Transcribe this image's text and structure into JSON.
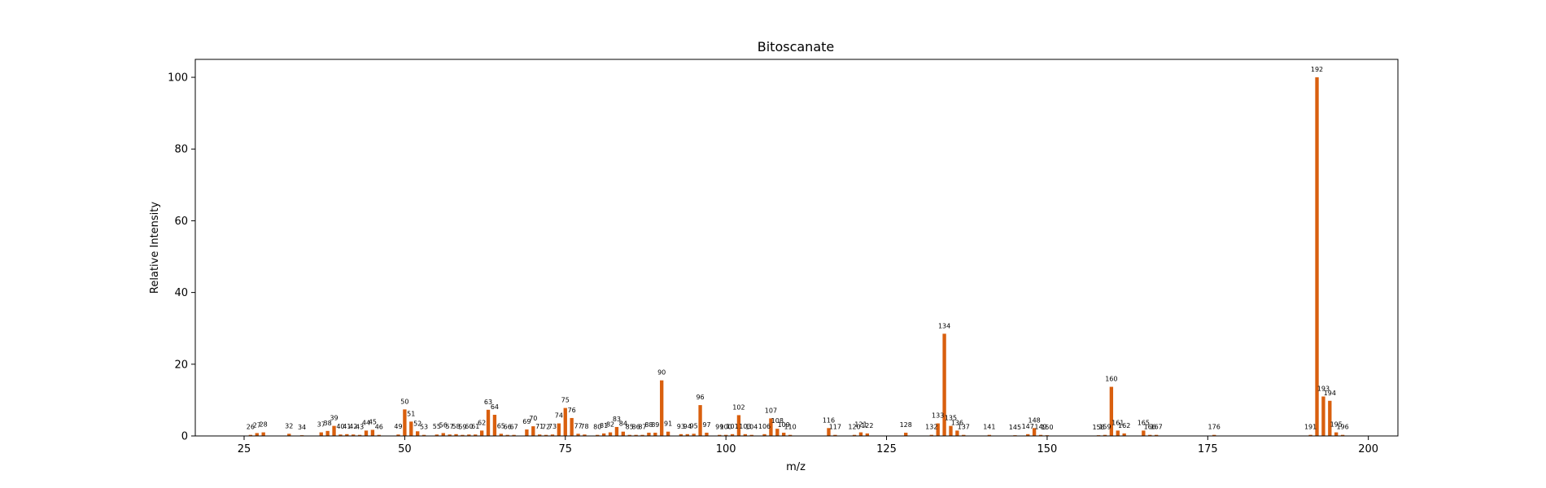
{
  "chart_data": {
    "type": "bar",
    "title": "Bitoscanate",
    "xlabel": "m/z",
    "ylabel": "Relative Intensity",
    "xlim": [
      17.4,
      204.6
    ],
    "ylim": [
      0,
      105
    ],
    "xticks": [
      25,
      50,
      75,
      100,
      125,
      150,
      175,
      200
    ],
    "yticks": [
      0,
      20,
      40,
      60,
      80,
      100
    ],
    "bar_color": "#d95f0e",
    "grid": false,
    "points": [
      {
        "mz": 26,
        "intensity": 0.3
      },
      {
        "mz": 27,
        "intensity": 0.8
      },
      {
        "mz": 28,
        "intensity": 1.0
      },
      {
        "mz": 32,
        "intensity": 0.6
      },
      {
        "mz": 34,
        "intensity": 0.2
      },
      {
        "mz": 37,
        "intensity": 1.0
      },
      {
        "mz": 38,
        "intensity": 1.4
      },
      {
        "mz": 39,
        "intensity": 2.8
      },
      {
        "mz": 40,
        "intensity": 0.4
      },
      {
        "mz": 41,
        "intensity": 0.5
      },
      {
        "mz": 42,
        "intensity": 0.4
      },
      {
        "mz": 43,
        "intensity": 0.3
      },
      {
        "mz": 44,
        "intensity": 1.5
      },
      {
        "mz": 45,
        "intensity": 1.7
      },
      {
        "mz": 46,
        "intensity": 0.3
      },
      {
        "mz": 49,
        "intensity": 0.4
      },
      {
        "mz": 50,
        "intensity": 7.4
      },
      {
        "mz": 51,
        "intensity": 4.0
      },
      {
        "mz": 52,
        "intensity": 1.3
      },
      {
        "mz": 53,
        "intensity": 0.3
      },
      {
        "mz": 55,
        "intensity": 0.4
      },
      {
        "mz": 56,
        "intensity": 0.8
      },
      {
        "mz": 57,
        "intensity": 0.4
      },
      {
        "mz": 58,
        "intensity": 0.5
      },
      {
        "mz": 59,
        "intensity": 0.3
      },
      {
        "mz": 60,
        "intensity": 0.4
      },
      {
        "mz": 61,
        "intensity": 0.4
      },
      {
        "mz": 62,
        "intensity": 1.5
      },
      {
        "mz": 63,
        "intensity": 7.3
      },
      {
        "mz": 64,
        "intensity": 5.9
      },
      {
        "mz": 65,
        "intensity": 0.6
      },
      {
        "mz": 66,
        "intensity": 0.3
      },
      {
        "mz": 67,
        "intensity": 0.3
      },
      {
        "mz": 69,
        "intensity": 1.8
      },
      {
        "mz": 70,
        "intensity": 2.7
      },
      {
        "mz": 71,
        "intensity": 0.4
      },
      {
        "mz": 72,
        "intensity": 0.3
      },
      {
        "mz": 73,
        "intensity": 0.4
      },
      {
        "mz": 74,
        "intensity": 3.5
      },
      {
        "mz": 75,
        "intensity": 7.8
      },
      {
        "mz": 76,
        "intensity": 5.0
      },
      {
        "mz": 77,
        "intensity": 0.6
      },
      {
        "mz": 78,
        "intensity": 0.4
      },
      {
        "mz": 80,
        "intensity": 0.3
      },
      {
        "mz": 81,
        "intensity": 0.7
      },
      {
        "mz": 82,
        "intensity": 1.0
      },
      {
        "mz": 83,
        "intensity": 2.5
      },
      {
        "mz": 84,
        "intensity": 1.2
      },
      {
        "mz": 85,
        "intensity": 0.3
      },
      {
        "mz": 86,
        "intensity": 0.3
      },
      {
        "mz": 87,
        "intensity": 0.3
      },
      {
        "mz": 88,
        "intensity": 0.9
      },
      {
        "mz": 89,
        "intensity": 0.9
      },
      {
        "mz": 90,
        "intensity": 15.5
      },
      {
        "mz": 91,
        "intensity": 1.2
      },
      {
        "mz": 93,
        "intensity": 0.5
      },
      {
        "mz": 94,
        "intensity": 0.5
      },
      {
        "mz": 95,
        "intensity": 0.6
      },
      {
        "mz": 96,
        "intensity": 8.6
      },
      {
        "mz": 97,
        "intensity": 0.9
      },
      {
        "mz": 99,
        "intensity": 0.3
      },
      {
        "mz": 100,
        "intensity": 0.3
      },
      {
        "mz": 101,
        "intensity": 0.5
      },
      {
        "mz": 102,
        "intensity": 5.8
      },
      {
        "mz": 103,
        "intensity": 0.5
      },
      {
        "mz": 104,
        "intensity": 0.3
      },
      {
        "mz": 106,
        "intensity": 0.5
      },
      {
        "mz": 107,
        "intensity": 4.9
      },
      {
        "mz": 108,
        "intensity": 2.0
      },
      {
        "mz": 109,
        "intensity": 0.9
      },
      {
        "mz": 110,
        "intensity": 0.3
      },
      {
        "mz": 116,
        "intensity": 2.2
      },
      {
        "mz": 117,
        "intensity": 0.3
      },
      {
        "mz": 120,
        "intensity": 0.3
      },
      {
        "mz": 121,
        "intensity": 1.0
      },
      {
        "mz": 122,
        "intensity": 0.7
      },
      {
        "mz": 128,
        "intensity": 0.9
      },
      {
        "mz": 132,
        "intensity": 0.3
      },
      {
        "mz": 133,
        "intensity": 3.5
      },
      {
        "mz": 134,
        "intensity": 28.5
      },
      {
        "mz": 135,
        "intensity": 2.8
      },
      {
        "mz": 136,
        "intensity": 1.5
      },
      {
        "mz": 137,
        "intensity": 0.3
      },
      {
        "mz": 141,
        "intensity": 0.3
      },
      {
        "mz": 145,
        "intensity": 0.2
      },
      {
        "mz": 147,
        "intensity": 0.5
      },
      {
        "mz": 148,
        "intensity": 2.2
      },
      {
        "mz": 149,
        "intensity": 0.3
      },
      {
        "mz": 150,
        "intensity": 0.2
      },
      {
        "mz": 158,
        "intensity": 0.2
      },
      {
        "mz": 159,
        "intensity": 0.3
      },
      {
        "mz": 160,
        "intensity": 13.7
      },
      {
        "mz": 161,
        "intensity": 1.5
      },
      {
        "mz": 162,
        "intensity": 0.7
      },
      {
        "mz": 165,
        "intensity": 1.5
      },
      {
        "mz": 166,
        "intensity": 0.3
      },
      {
        "mz": 167,
        "intensity": 0.3
      },
      {
        "mz": 176,
        "intensity": 0.3
      },
      {
        "mz": 191,
        "intensity": 0.3
      },
      {
        "mz": 192,
        "intensity": 100.0
      },
      {
        "mz": 193,
        "intensity": 11.0
      },
      {
        "mz": 194,
        "intensity": 9.8
      },
      {
        "mz": 195,
        "intensity": 1.0
      },
      {
        "mz": 196,
        "intensity": 0.3
      }
    ]
  }
}
